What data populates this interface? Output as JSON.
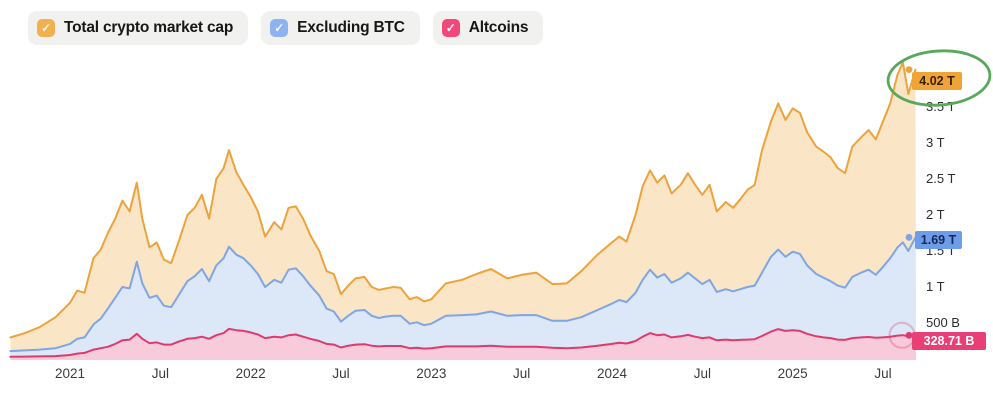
{
  "page": {
    "background": "#ffffff"
  },
  "legend": {
    "check_glyph": "✓",
    "items": [
      {
        "id": "total",
        "label": "Total crypto market cap",
        "color": "#f3ae4e"
      },
      {
        "id": "excluding-btc",
        "label": "Excluding BTC",
        "color": "#8db3f3"
      },
      {
        "id": "altcoins",
        "label": "Altcoins",
        "color": "#f2477b"
      }
    ]
  },
  "chart_data": {
    "type": "area",
    "title": "",
    "x_unit": "decimal-year",
    "x_range": [
      2020.67,
      2025.68
    ],
    "y_range_trillions_usd": [
      0,
      4.13
    ],
    "grid": false,
    "legend_position": "top-left",
    "x_ticks": [
      {
        "v": 2021.0,
        "label": "2021"
      },
      {
        "v": 2021.5,
        "label": "Jul"
      },
      {
        "v": 2022.0,
        "label": "2022"
      },
      {
        "v": 2022.5,
        "label": "Jul"
      },
      {
        "v": 2023.0,
        "label": "2023"
      },
      {
        "v": 2023.5,
        "label": "Jul"
      },
      {
        "v": 2024.0,
        "label": "2024"
      },
      {
        "v": 2024.5,
        "label": "Jul"
      },
      {
        "v": 2025.0,
        "label": "2025"
      },
      {
        "v": 2025.5,
        "label": "Jul"
      }
    ],
    "y_ticks": [
      {
        "v": 3.5,
        "label": "3.5 T"
      },
      {
        "v": 3.0,
        "label": "3 T"
      },
      {
        "v": 2.5,
        "label": "2.5 T"
      },
      {
        "v": 2.0,
        "label": "2 T"
      },
      {
        "v": 1.5,
        "label": "1.5 T"
      },
      {
        "v": 1.0,
        "label": "1 T"
      },
      {
        "v": 0.5,
        "label": "500 B"
      }
    ],
    "x": [
      2020.67,
      2020.75,
      2020.83,
      2020.92,
      2021.0,
      2021.04,
      2021.08,
      2021.13,
      2021.17,
      2021.21,
      2021.25,
      2021.29,
      2021.33,
      2021.37,
      2021.4,
      2021.44,
      2021.48,
      2021.52,
      2021.56,
      2021.6,
      2021.65,
      2021.69,
      2021.73,
      2021.77,
      2021.81,
      2021.85,
      2021.88,
      2021.92,
      2021.96,
      2022.0,
      2022.04,
      2022.08,
      2022.13,
      2022.17,
      2022.21,
      2022.25,
      2022.29,
      2022.33,
      2022.38,
      2022.42,
      2022.46,
      2022.5,
      2022.54,
      2022.58,
      2022.63,
      2022.67,
      2022.71,
      2022.75,
      2022.79,
      2022.83,
      2022.88,
      2022.92,
      2022.96,
      2023.0,
      2023.08,
      2023.17,
      2023.25,
      2023.33,
      2023.42,
      2023.5,
      2023.58,
      2023.67,
      2023.75,
      2023.83,
      2023.92,
      2024.0,
      2024.04,
      2024.08,
      2024.13,
      2024.17,
      2024.21,
      2024.25,
      2024.29,
      2024.33,
      2024.38,
      2024.42,
      2024.46,
      2024.5,
      2024.54,
      2024.58,
      2024.63,
      2024.67,
      2024.71,
      2024.75,
      2024.79,
      2024.83,
      2024.88,
      2024.92,
      2024.96,
      2025.0,
      2025.04,
      2025.08,
      2025.13,
      2025.17,
      2025.21,
      2025.25,
      2025.29,
      2025.33,
      2025.38,
      2025.42,
      2025.46,
      2025.5,
      2025.54,
      2025.58,
      2025.61,
      2025.64,
      2025.68
    ],
    "series": [
      {
        "id": "total",
        "name": "Total crypto market cap",
        "line_color": "#eda33c",
        "fill_color": "#fae5c6",
        "badge_bg": "#f0a437",
        "badge_text_color": "#33230a",
        "end_label": "4.02 T",
        "values": [
          0.3,
          0.36,
          0.44,
          0.58,
          0.78,
          0.95,
          0.92,
          1.4,
          1.52,
          1.75,
          1.95,
          2.2,
          2.05,
          2.45,
          1.95,
          1.55,
          1.62,
          1.38,
          1.33,
          1.62,
          2.0,
          2.1,
          2.28,
          1.95,
          2.5,
          2.65,
          2.9,
          2.6,
          2.42,
          2.25,
          2.05,
          1.7,
          1.9,
          1.8,
          2.1,
          2.12,
          1.95,
          1.72,
          1.5,
          1.22,
          1.18,
          0.9,
          1.02,
          1.12,
          1.14,
          1.0,
          0.96,
          0.98,
          1.0,
          0.99,
          0.83,
          0.86,
          0.8,
          0.83,
          1.05,
          1.1,
          1.18,
          1.25,
          1.12,
          1.17,
          1.2,
          1.04,
          1.05,
          1.22,
          1.45,
          1.62,
          1.7,
          1.63,
          2.0,
          2.4,
          2.62,
          2.45,
          2.55,
          2.3,
          2.42,
          2.58,
          2.42,
          2.28,
          2.42,
          2.05,
          2.18,
          2.1,
          2.22,
          2.35,
          2.42,
          2.9,
          3.3,
          3.55,
          3.32,
          3.48,
          3.42,
          3.15,
          2.95,
          2.88,
          2.8,
          2.65,
          2.58,
          2.95,
          3.08,
          3.18,
          3.05,
          3.3,
          3.55,
          3.95,
          4.12,
          3.68,
          4.02
        ]
      },
      {
        "id": "excluding-btc",
        "name": "Excluding BTC",
        "line_color": "#7fa5e6",
        "fill_color": "#dce7f8",
        "badge_bg": "#6d9ce8",
        "badge_text_color": "#142a52",
        "end_label": "1.69 T",
        "values": [
          0.11,
          0.12,
          0.13,
          0.15,
          0.21,
          0.28,
          0.3,
          0.48,
          0.56,
          0.7,
          0.85,
          1.0,
          0.98,
          1.35,
          1.05,
          0.85,
          0.88,
          0.74,
          0.72,
          0.88,
          1.08,
          1.15,
          1.25,
          1.08,
          1.3,
          1.4,
          1.56,
          1.45,
          1.4,
          1.3,
          1.18,
          1.0,
          1.1,
          1.06,
          1.24,
          1.26,
          1.15,
          1.02,
          0.88,
          0.7,
          0.66,
          0.52,
          0.6,
          0.67,
          0.68,
          0.6,
          0.57,
          0.59,
          0.6,
          0.6,
          0.49,
          0.51,
          0.47,
          0.49,
          0.6,
          0.61,
          0.62,
          0.66,
          0.6,
          0.61,
          0.61,
          0.53,
          0.53,
          0.58,
          0.68,
          0.77,
          0.82,
          0.79,
          0.92,
          1.1,
          1.24,
          1.13,
          1.18,
          1.06,
          1.12,
          1.2,
          1.12,
          1.04,
          1.1,
          0.93,
          0.97,
          0.94,
          0.97,
          1.0,
          1.02,
          1.2,
          1.42,
          1.52,
          1.42,
          1.49,
          1.46,
          1.3,
          1.18,
          1.13,
          1.08,
          1.02,
          0.99,
          1.14,
          1.2,
          1.24,
          1.17,
          1.28,
          1.4,
          1.55,
          1.62,
          1.5,
          1.69
        ]
      },
      {
        "id": "altcoins",
        "name": "Altcoins",
        "line_color": "#df3a6e",
        "fill_color": "#f8cbda",
        "badge_bg": "#e84076",
        "badge_text_color": "#ffffff",
        "end_label": "328.71 B",
        "values": [
          0.03,
          0.033,
          0.036,
          0.04,
          0.055,
          0.075,
          0.085,
          0.13,
          0.15,
          0.17,
          0.21,
          0.26,
          0.27,
          0.35,
          0.28,
          0.22,
          0.23,
          0.2,
          0.2,
          0.24,
          0.28,
          0.29,
          0.31,
          0.28,
          0.33,
          0.36,
          0.42,
          0.4,
          0.39,
          0.37,
          0.34,
          0.29,
          0.31,
          0.3,
          0.33,
          0.34,
          0.31,
          0.28,
          0.25,
          0.21,
          0.2,
          0.16,
          0.185,
          0.2,
          0.205,
          0.185,
          0.175,
          0.18,
          0.18,
          0.18,
          0.15,
          0.155,
          0.145,
          0.15,
          0.175,
          0.175,
          0.175,
          0.185,
          0.17,
          0.17,
          0.17,
          0.155,
          0.15,
          0.16,
          0.185,
          0.21,
          0.225,
          0.215,
          0.25,
          0.31,
          0.36,
          0.33,
          0.34,
          0.3,
          0.315,
          0.335,
          0.31,
          0.29,
          0.3,
          0.26,
          0.27,
          0.26,
          0.265,
          0.27,
          0.275,
          0.32,
          0.38,
          0.415,
          0.39,
          0.4,
          0.39,
          0.35,
          0.315,
          0.3,
          0.29,
          0.27,
          0.265,
          0.29,
          0.3,
          0.305,
          0.295,
          0.3,
          0.31,
          0.325,
          0.33,
          0.315,
          0.3287
        ]
      }
    ],
    "endpoint_halo_color": "rgba(223,58,110,0.32)"
  },
  "annotation": {
    "shape": "ellipse-highlight",
    "color": "#58a85b"
  }
}
